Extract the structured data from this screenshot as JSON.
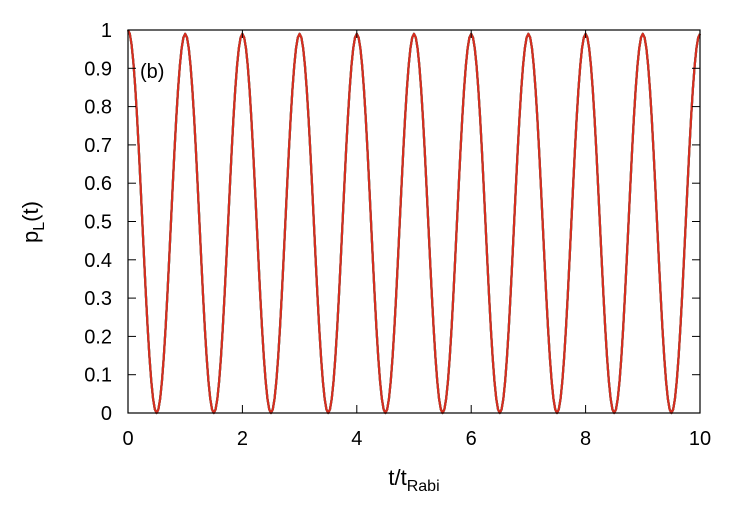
{
  "chart_data": {
    "type": "line",
    "panel_label": "(b)",
    "xlabel": {
      "base": "t/t",
      "sub": "Rabi"
    },
    "ylabel": {
      "base": "p",
      "sub": "L",
      "suffix": "(t)"
    },
    "xlim": [
      0,
      10
    ],
    "ylim": [
      0,
      1
    ],
    "xticks": [
      "0",
      "2",
      "4",
      "6",
      "8",
      "10"
    ],
    "yticks": [
      "0",
      "0.1",
      "0.2",
      "0.3",
      "0.4",
      "0.5",
      "0.6",
      "0.7",
      "0.8",
      "0.9",
      "1"
    ],
    "grid": false,
    "legend": "none",
    "series": [
      {
        "color": "#1f8a9a",
        "x": [
          0.0,
          0.5,
          1.0,
          1.5,
          2.0,
          2.5,
          3.0,
          3.5,
          4.0,
          4.5,
          5.0,
          5.5,
          6.0,
          6.5,
          7.0,
          7.5,
          8.0,
          8.5,
          9.0,
          9.5,
          10.0
        ],
        "y": [
          1.0,
          0.0,
          0.99,
          0.0,
          0.99,
          0.0,
          0.99,
          0.0,
          0.99,
          0.0,
          0.99,
          0.0,
          0.99,
          0.0,
          0.99,
          0.0,
          0.99,
          0.0,
          0.99,
          0.0,
          0.99
        ]
      },
      {
        "color": "#3b7dc4",
        "x": [
          0.0,
          0.5,
          1.0,
          1.5,
          2.0,
          2.5,
          3.0,
          3.5,
          4.0,
          4.5,
          5.0,
          5.5,
          6.0,
          6.5,
          7.0,
          7.5,
          8.0,
          8.5,
          9.0,
          9.5,
          10.0
        ],
        "y": [
          1.0,
          0.0,
          0.99,
          0.0,
          0.99,
          0.0,
          0.99,
          0.0,
          0.99,
          0.0,
          0.99,
          0.0,
          0.99,
          0.0,
          0.99,
          0.0,
          0.99,
          0.0,
          0.99,
          0.0,
          0.99
        ]
      },
      {
        "color": "#3c8c3a",
        "x": [
          0.0,
          0.5,
          1.0,
          1.5,
          2.0,
          2.5,
          3.0,
          3.5,
          4.0,
          4.5,
          5.0,
          5.5,
          6.0,
          6.5,
          7.0,
          7.5,
          8.0,
          8.5,
          9.0,
          9.5,
          10.0
        ],
        "y": [
          1.0,
          0.0,
          0.99,
          0.0,
          0.99,
          0.0,
          0.99,
          0.0,
          0.99,
          0.0,
          0.99,
          0.0,
          0.99,
          0.0,
          0.99,
          0.0,
          0.99,
          0.0,
          0.99,
          0.0,
          0.99
        ]
      },
      {
        "color": "#d62d20",
        "x": [
          0.0,
          0.5,
          1.0,
          1.5,
          2.0,
          2.5,
          3.0,
          3.5,
          4.0,
          4.5,
          5.0,
          5.5,
          6.0,
          6.5,
          7.0,
          7.5,
          8.0,
          8.5,
          9.0,
          9.5,
          10.0
        ],
        "y": [
          1.0,
          0.0,
          0.99,
          0.0,
          0.99,
          0.0,
          0.99,
          0.0,
          0.99,
          0.0,
          0.99,
          0.0,
          0.99,
          0.0,
          0.99,
          0.0,
          0.99,
          0.0,
          0.99,
          0.0,
          0.99
        ]
      }
    ]
  }
}
